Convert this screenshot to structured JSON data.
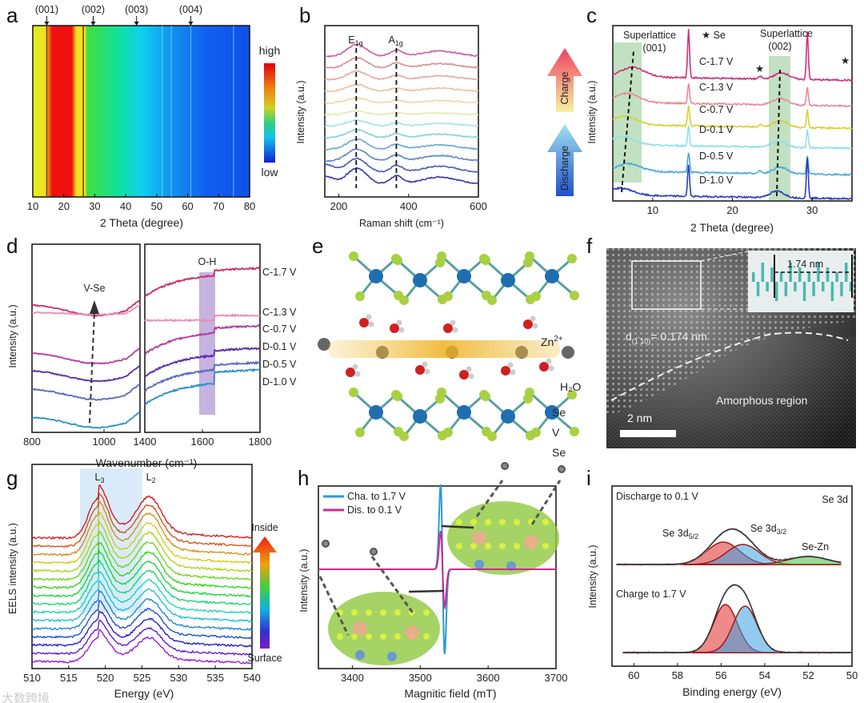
{
  "chart_data": [
    {
      "panel": "a",
      "type": "heatmap",
      "xlabel": "2 Theta (degree)",
      "xlim": [
        10,
        80
      ],
      "xticks": [
        "10",
        "20",
        "30",
        "40",
        "50",
        "60",
        "70",
        "80"
      ],
      "peak_labels": [
        {
          "label": "(001)",
          "x": 14.5
        },
        {
          "label": "(002)",
          "x": 29.5
        },
        {
          "label": "(003)",
          "x": 43.5
        },
        {
          "label": "(004)",
          "x": 61
        }
      ],
      "colorbar": {
        "high": "high",
        "low": "low"
      }
    },
    {
      "panel": "b",
      "type": "line",
      "xlabel": "Raman shift (cm⁻¹)",
      "ylabel": "Intensity (a.u.)",
      "xlim": [
        160,
        600
      ],
      "xticks": [
        "200",
        "400",
        "600"
      ],
      "peaks": [
        {
          "label": "E",
          "sub": "1g",
          "x": 250
        },
        {
          "label": "A",
          "sub": "1g",
          "x": 365
        }
      ],
      "n_series": 12,
      "arrows": {
        "charge": "Charge",
        "discharge": "Discharge"
      }
    },
    {
      "panel": "c",
      "type": "line",
      "xlabel": "2 Theta (degree)",
      "ylabel": "Intensity (a.u.)",
      "xlim": [
        5,
        35
      ],
      "xticks": [
        "10",
        "20",
        "30"
      ],
      "annotations": {
        "sl1": "Superlattice",
        "sl1b": "(001)",
        "sl2": "Superlattice",
        "sl2b": "(002)",
        "se": "★ Se"
      },
      "series": [
        {
          "name": "C-1.7 V",
          "color": "#d0307a",
          "sl_peak": 7.5,
          "sl2_peak": 26.2
        },
        {
          "name": "C-1.3 V",
          "color": "#e88a95",
          "sl_peak": 6.8,
          "sl2_peak": 26.0
        },
        {
          "name": "C-0.7 V",
          "color": "#d8d030",
          "sl_peak": 6.5,
          "sl2_peak": 26.0
        },
        {
          "name": "D-0.1 V",
          "color": "#8fe0e8",
          "sl_peak": 6.2,
          "sl2_peak": 25.8
        },
        {
          "name": "D-0.5 V",
          "color": "#4aa8de",
          "sl_peak": 7.0,
          "sl2_peak": 26.0
        },
        {
          "name": "D-1.0 V",
          "color": "#2a3cc0",
          "sl_peak": 6.0,
          "sl2_peak": 25.6
        }
      ]
    },
    {
      "panel": "d",
      "type": "line",
      "xlabel": "Wavenumber (cm⁻¹)",
      "ylabel": "Intensity (a.u.)",
      "xlim_left": [
        800,
        1100
      ],
      "xlim_right": [
        1400,
        1800
      ],
      "xticks_left": [
        "800",
        "1000"
      ],
      "xticks_right": [
        "1400",
        "1600",
        "1800"
      ],
      "annotations": {
        "vse": "V-Se",
        "oh": "O-H"
      },
      "series": [
        {
          "name": "C-1.7 V",
          "color": "#c8306a"
        },
        {
          "name": "C-1.3 V",
          "color": "#e890b8"
        },
        {
          "name": "C-0.7 V",
          "color": "#b83aa0"
        },
        {
          "name": "D-0.1 V",
          "color": "#5a2ca8"
        },
        {
          "name": "D-0.5 V",
          "color": "#5a6ac0"
        },
        {
          "name": "D-1.0 V",
          "color": "#2a90c8"
        }
      ]
    },
    {
      "panel": "g",
      "type": "line",
      "xlabel": "Energy (eV)",
      "ylabel": "EELS intensity (a.u.)",
      "xlim": [
        510,
        540
      ],
      "xticks": [
        "510",
        "515",
        "520",
        "525",
        "530",
        "535",
        "540"
      ],
      "peaks": [
        {
          "label": "L",
          "sub": "3",
          "x": 519
        },
        {
          "label": "L",
          "sub": "2",
          "x": 526
        }
      ],
      "n_series": 16,
      "gradient": {
        "top": "Inside",
        "bottom": "Surface"
      }
    },
    {
      "panel": "h",
      "type": "line",
      "xlabel": "Magnitic field (mT)",
      "ylabel": "Intensity (a.u.)",
      "xlim": [
        3350,
        3700
      ],
      "xticks": [
        "3400",
        "3500",
        "3600",
        "3700"
      ],
      "series": [
        {
          "name": "Cha. to 1.7 V",
          "color": "#2a9ad8",
          "amplitude": 1.0
        },
        {
          "name": "Dis. to 0.1 V",
          "color": "#d02a8a",
          "amplitude": 0.45
        }
      ],
      "center": 3533
    },
    {
      "panel": "i",
      "type": "line",
      "xlabel": "Binding energy (eV)",
      "ylabel": "Intensity (a.u.)",
      "xlim": [
        61,
        50
      ],
      "xticks": [
        "60",
        "58",
        "56",
        "54",
        "52",
        "50"
      ],
      "title": "Se 3d",
      "spectra": [
        {
          "name": "Discharge to 0.1 V",
          "components": [
            {
              "label": "Se 3d",
              "sub": "5/2",
              "x": 55.9,
              "color": "#e02a2a"
            },
            {
              "label": "Se 3d",
              "sub": "3/2",
              "x": 55.0,
              "color": "#3aa0e0"
            },
            {
              "label": "Se-Zn",
              "x": 52.0,
              "color": "#40c040"
            }
          ]
        },
        {
          "name": "Charge to 1.7 V",
          "components": [
            {
              "x": 55.8,
              "color": "#e02a2a"
            },
            {
              "x": 54.9,
              "color": "#3aa0e0"
            }
          ]
        }
      ]
    }
  ],
  "panels": {
    "labels": [
      "a",
      "b",
      "c",
      "d",
      "e",
      "f",
      "g",
      "h",
      "i"
    ],
    "e": {
      "zn": "Zn",
      "zn_sup": "2+",
      "h2o": "H₂O",
      "se1": "Se",
      "v": "V",
      "se2": "Se"
    },
    "f": {
      "d_spacing": "d",
      "d_sub": "(1̅ 10)",
      "d_val": "= 0.174 nm",
      "inset": "1.74 nm",
      "region": "Amorphous region",
      "scale": "2 nm"
    }
  },
  "watermark": "大数跨境"
}
